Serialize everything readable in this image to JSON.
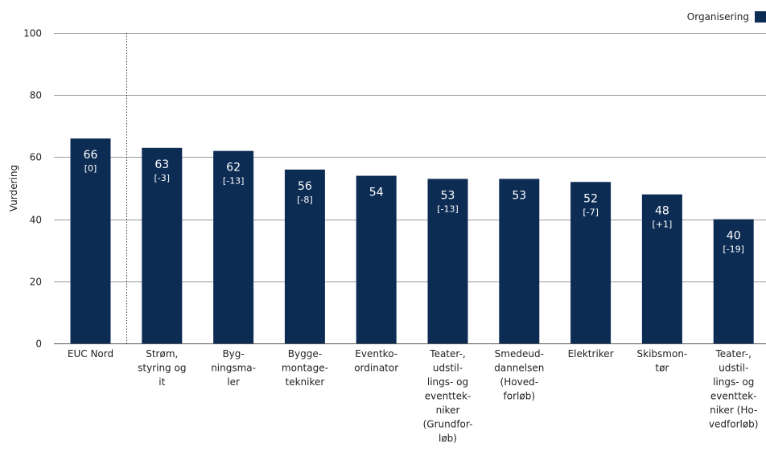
{
  "chart_data": {
    "type": "bar",
    "ylabel": "Vurdering",
    "ylim": [
      0,
      100
    ],
    "yticks": [
      0,
      20,
      40,
      60,
      80,
      100
    ],
    "grid": true,
    "legend": {
      "position": "top-right",
      "label": "Organisering"
    },
    "colors": {
      "bar": "#0d2c54",
      "grid": "#9a9a9a",
      "text": "#222222",
      "value_text": "#ffffff"
    },
    "categories": [
      [
        "EUC Nord"
      ],
      [
        "Strøm,",
        "styring og",
        "it"
      ],
      [
        "Byg-",
        "ningsma-",
        "ler"
      ],
      [
        "Bygge-",
        "montage-",
        "tekniker"
      ],
      [
        "Eventko-",
        "ordinator"
      ],
      [
        "Teater-,",
        "udstil-",
        "lings- og",
        "eventtek-",
        "niker",
        "(Grundfor-",
        "løb)"
      ],
      [
        "Smedeud-",
        "dannelsen",
        "(Hoved-",
        "forløb)"
      ],
      [
        "Elektriker"
      ],
      [
        "Skibsmon-",
        "tør"
      ],
      [
        "Teater-,",
        "udstil-",
        "lings- og",
        "eventtek-",
        "niker (Ho-",
        "vedforløb)"
      ]
    ],
    "values": [
      66,
      63,
      62,
      56,
      54,
      53,
      53,
      52,
      48,
      40
    ],
    "value_labels": [
      "66",
      "63",
      "62",
      "56",
      "54",
      "53",
      "53",
      "52",
      "48",
      "40"
    ],
    "change_labels": [
      "[0]",
      "[-3]",
      "[-13]",
      "[-8]",
      "",
      "[-13]",
      "",
      "[-7]",
      "[+1]",
      "[-19]"
    ]
  }
}
